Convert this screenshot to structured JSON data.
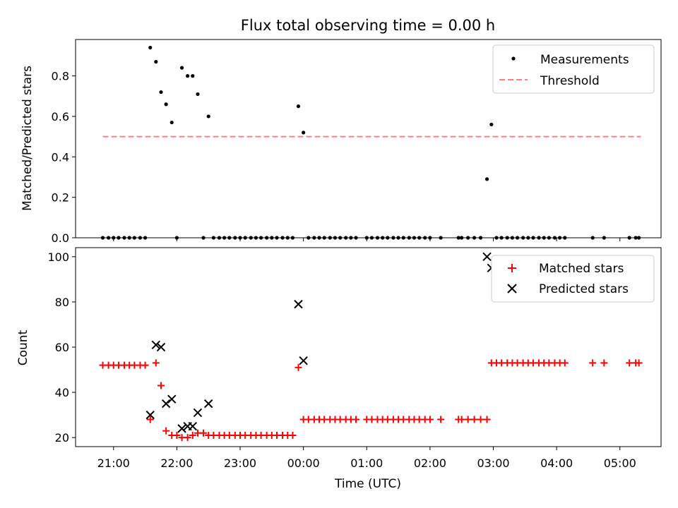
{
  "chart_data": [
    {
      "type": "scatter",
      "title": "Flux total observing time = 0.00 h",
      "xlabel": "",
      "ylabel": "Matched/Predicted stars",
      "xlim": [
        20.4,
        29.65
      ],
      "ylim": [
        0,
        0.98
      ],
      "yticks": [
        0.0,
        0.2,
        0.4,
        0.6,
        0.8
      ],
      "ytick_labels": [
        "0.0",
        "0.2",
        "0.4",
        "0.6",
        "0.8"
      ],
      "legend": {
        "position": "top-right",
        "entries": [
          "Measurements",
          "Threshold"
        ]
      },
      "series": [
        {
          "name": "Measurements",
          "marker": "dot",
          "color": "#000000",
          "x": [
            20.83,
            20.92,
            21.0,
            21.08,
            21.17,
            21.25,
            21.33,
            21.42,
            21.5,
            21.58,
            21.67,
            21.75,
            21.83,
            21.92,
            22.0,
            22.08,
            22.17,
            22.25,
            22.33,
            22.42,
            22.5,
            22.58,
            22.67,
            22.75,
            22.83,
            22.92,
            23.0,
            23.08,
            23.17,
            23.25,
            23.33,
            23.42,
            23.5,
            23.58,
            23.67,
            23.75,
            23.83,
            23.92,
            24.0,
            24.08,
            24.17,
            24.25,
            24.33,
            24.42,
            24.5,
            24.58,
            24.67,
            24.75,
            24.83,
            25.0,
            25.08,
            25.17,
            25.25,
            25.33,
            25.42,
            25.5,
            25.58,
            25.67,
            25.75,
            25.83,
            25.92,
            26.0,
            26.17,
            26.45,
            26.5,
            26.6,
            26.7,
            26.8,
            26.9,
            26.97,
            27.05,
            27.13,
            27.22,
            27.3,
            27.38,
            27.47,
            27.55,
            27.63,
            27.72,
            27.8,
            27.88,
            27.97,
            28.05,
            28.13,
            28.57,
            28.75,
            29.15,
            29.25,
            29.3
          ],
          "y": [
            0,
            0,
            0,
            0,
            0,
            0,
            0,
            0,
            0,
            0.94,
            0.87,
            0.72,
            0.66,
            0.57,
            0,
            0.84,
            0.8,
            0.8,
            0.71,
            0,
            0.6,
            0,
            0,
            0,
            0,
            0,
            0,
            0,
            0,
            0,
            0,
            0,
            0,
            0,
            0,
            0,
            0,
            0.65,
            0.52,
            0,
            0,
            0,
            0,
            0,
            0,
            0,
            0,
            0,
            0,
            0,
            0,
            0,
            0,
            0,
            0,
            0,
            0,
            0,
            0,
            0,
            0,
            0,
            0,
            0,
            0,
            0,
            0,
            0,
            0.29,
            0.56,
            0,
            0,
            0,
            0,
            0,
            0,
            0,
            0,
            0,
            0,
            0,
            0,
            0,
            0,
            0,
            0,
            0,
            0,
            0
          ]
        },
        {
          "name": "Threshold",
          "style": "dashed",
          "color": "#ff7f7f",
          "x": [
            20.83,
            29.33
          ],
          "y": [
            0.5,
            0.5
          ]
        }
      ]
    },
    {
      "type": "scatter",
      "title": "",
      "xlabel": "Time (UTC)",
      "ylabel": "Count",
      "xlim": [
        20.4,
        29.65
      ],
      "ylim": [
        16,
        104
      ],
      "yticks": [
        20,
        40,
        60,
        80,
        100
      ],
      "ytick_labels": [
        "20",
        "40",
        "60",
        "80",
        "100"
      ],
      "xticks": [
        21,
        22,
        23,
        24,
        25,
        26,
        27,
        28,
        29
      ],
      "xtick_labels": [
        "21:00",
        "22:00",
        "23:00",
        "00:00",
        "01:00",
        "02:00",
        "03:00",
        "04:00",
        "05:00"
      ],
      "legend": {
        "position": "top-right",
        "entries": [
          "Matched stars",
          "Predicted stars"
        ]
      },
      "series": [
        {
          "name": "Matched stars",
          "marker": "plus",
          "color": "#ff0000",
          "x": [
            20.83,
            20.92,
            21.0,
            21.08,
            21.17,
            21.25,
            21.33,
            21.42,
            21.5,
            21.58,
            21.67,
            21.75,
            21.83,
            21.92,
            22.0,
            22.08,
            22.17,
            22.25,
            22.33,
            22.42,
            22.5,
            22.58,
            22.67,
            22.75,
            22.83,
            22.92,
            23.0,
            23.08,
            23.17,
            23.25,
            23.33,
            23.42,
            23.5,
            23.58,
            23.67,
            23.75,
            23.83,
            23.92,
            24.0,
            24.08,
            24.17,
            24.25,
            24.33,
            24.42,
            24.5,
            24.58,
            24.67,
            24.75,
            24.83,
            25.0,
            25.08,
            25.17,
            25.25,
            25.33,
            25.42,
            25.5,
            25.58,
            25.67,
            25.75,
            25.83,
            25.92,
            26.0,
            26.17,
            26.45,
            26.5,
            26.6,
            26.7,
            26.8,
            26.9,
            26.97,
            27.05,
            27.13,
            27.22,
            27.3,
            27.38,
            27.47,
            27.55,
            27.63,
            27.72,
            27.8,
            27.88,
            27.97,
            28.05,
            28.13,
            28.57,
            28.75,
            29.15,
            29.25,
            29.3
          ],
          "y": [
            52,
            52,
            52,
            52,
            52,
            52,
            52,
            52,
            52,
            28,
            53,
            43,
            23,
            21,
            21,
            20,
            20,
            21,
            22,
            22,
            21,
            21,
            21,
            21,
            21,
            21,
            21,
            21,
            21,
            21,
            21,
            21,
            21,
            21,
            21,
            21,
            21,
            51,
            28,
            28,
            28,
            28,
            28,
            28,
            28,
            28,
            28,
            28,
            28,
            28,
            28,
            28,
            28,
            28,
            28,
            28,
            28,
            28,
            28,
            28,
            28,
            28,
            28,
            28,
            28,
            28,
            28,
            28,
            28,
            53,
            53,
            53,
            53,
            53,
            53,
            53,
            53,
            53,
            53,
            53,
            53,
            53,
            53,
            53,
            53,
            53,
            53,
            53,
            53
          ]
        },
        {
          "name": "Predicted stars",
          "marker": "x",
          "color": "#000000",
          "x": [
            21.58,
            21.67,
            21.75,
            21.83,
            21.92,
            22.08,
            22.17,
            22.25,
            22.33,
            22.5,
            23.92,
            24.0,
            26.9,
            26.97
          ],
          "y": [
            30,
            61,
            60,
            35,
            37,
            24,
            25,
            25,
            31,
            35,
            79,
            54,
            100,
            95
          ]
        }
      ]
    }
  ]
}
